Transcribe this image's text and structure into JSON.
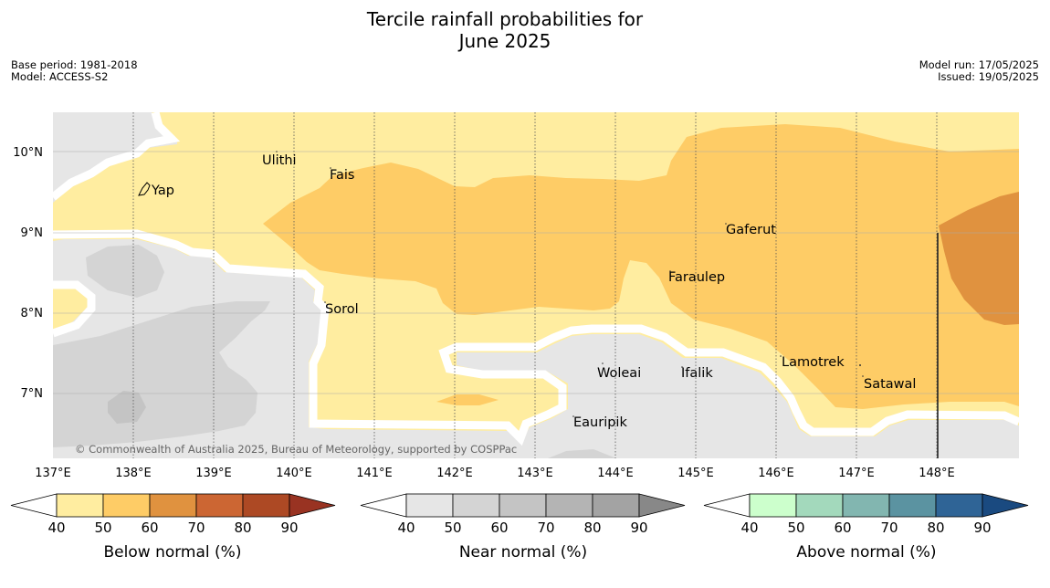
{
  "title_line1": "Tercile rainfall probabilities for",
  "title_line2": "June 2025",
  "meta": {
    "base_period": "Base period: 1981-2018",
    "model": "Model: ACCESS-S2",
    "model_run": "Model run: 17/05/2025",
    "issued": "Issued: 19/05/2025"
  },
  "map": {
    "lon_labels": [
      "137°E",
      "138°E",
      "139°E",
      "140°E",
      "141°E",
      "142°E",
      "143°E",
      "144°E",
      "145°E",
      "146°E",
      "147°E",
      "148°E"
    ],
    "lat_labels": [
      "10°N",
      "9°N",
      "8°N",
      "7°N"
    ],
    "places": [
      {
        "name": "Ulithi"
      },
      {
        "name": "Fais"
      },
      {
        "name": "Yap"
      },
      {
        "name": "Gaferut"
      },
      {
        "name": "Faraulep"
      },
      {
        "name": "Sorol"
      },
      {
        "name": "Lamotrek"
      },
      {
        "name": "Woleai"
      },
      {
        "name": "Ifalik"
      },
      {
        "name": "Satawal"
      },
      {
        "name": "Eauripik"
      }
    ],
    "copyright": "© Commonwealth of Australia 2025, Bureau of Meteorology, supported by COSPPac"
  },
  "legend": {
    "ticks": [
      "40",
      "50",
      "60",
      "70",
      "80",
      "90"
    ],
    "below": {
      "label": "Below normal (%)",
      "colors": [
        "#ffffff",
        "#ffeda0",
        "#fecc66",
        "#e0923f",
        "#cc6633",
        "#ad4924",
        "#993322"
      ]
    },
    "near": {
      "label": "Near normal (%)",
      "colors": [
        "#ffffff",
        "#e6e6e6",
        "#d4d4d4",
        "#c4c4c4",
        "#b4b4b4",
        "#a3a3a3",
        "#888888"
      ]
    },
    "above": {
      "label": "Above normal (%)",
      "colors": [
        "#ffffff",
        "#ccffcc",
        "#a3d9bc",
        "#82b6b0",
        "#5b93a1",
        "#2f6496",
        "#1a4a80"
      ]
    }
  }
}
